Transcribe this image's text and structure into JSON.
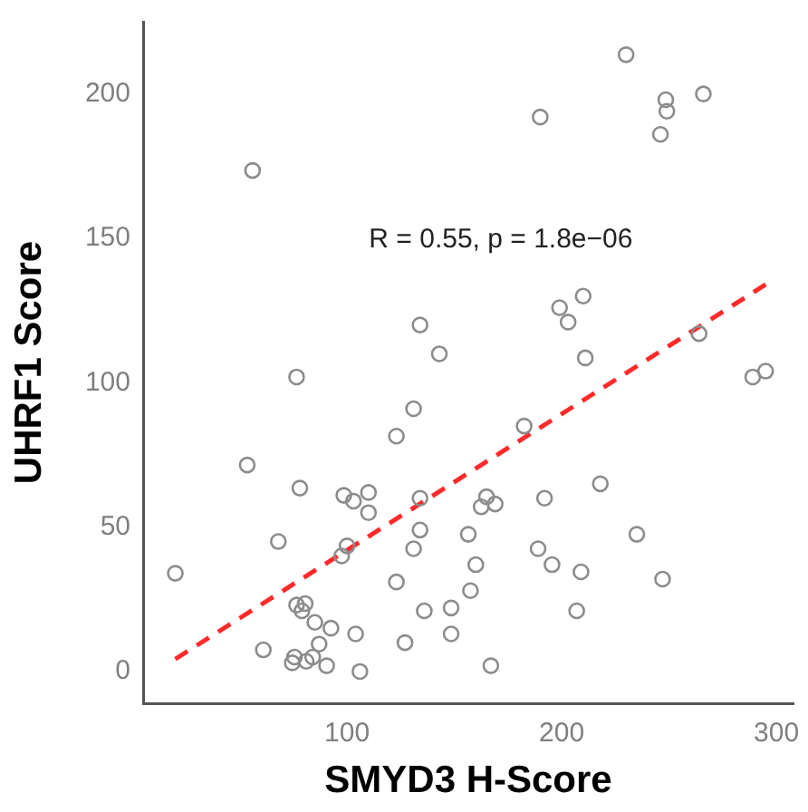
{
  "chart_data": {
    "type": "scatter",
    "xlabel": "SMYD3 H-Score",
    "ylabel": "UHRF1 Score",
    "annotations": [
      "R = 0.55, p = 1.8e−06"
    ],
    "xlim": [
      5,
      308
    ],
    "xticks": [
      100,
      200,
      300
    ],
    "ylim": [
      -11,
      225
    ],
    "yticks": [
      0,
      50,
      100,
      150,
      200
    ],
    "grid": false,
    "legend": false,
    "marker": "circle",
    "series": [
      {
        "color": "#8c8c8c",
        "x": [
          56,
          230,
          190,
          248.5,
          249,
          266,
          246,
          134,
          143,
          199,
          210,
          203,
          211,
          264,
          289,
          295,
          131,
          123,
          182.5,
          218,
          110,
          110,
          134,
          165,
          162.5,
          169,
          192,
          134,
          156.5,
          131,
          189,
          235,
          195.5,
          160,
          209,
          123,
          247,
          157.5,
          136,
          148.5,
          207,
          148.5,
          127,
          167,
          76.5,
          53.5,
          78,
          98.5,
          103,
          68,
          100,
          97.5,
          20,
          76.5,
          80.5,
          79,
          85,
          92.5,
          104,
          61,
          87,
          84,
          75.5,
          74.5,
          81,
          90.5,
          106
        ],
        "values": [
          173.5,
          213.6,
          192,
          198,
          194,
          200,
          186,
          120,
          110,
          126,
          130,
          121,
          108.6,
          117,
          102,
          104,
          91,
          81.5,
          85,
          65,
          62,
          55,
          60,
          60.5,
          57,
          58,
          60,
          49,
          47.5,
          42.5,
          42.5,
          47.5,
          37,
          37,
          34.5,
          31,
          32,
          28,
          21,
          22,
          21,
          13,
          10,
          2,
          102,
          71.5,
          63.5,
          61,
          59,
          45,
          43.5,
          40,
          34,
          23,
          23.5,
          21,
          17,
          15,
          13,
          7.5,
          9.5,
          5,
          5,
          3,
          3.5,
          2,
          0
        ]
      },
      {
        "type": "line",
        "color": "#ff2a2a",
        "line_style": "dashed",
        "marker": "none",
        "x": [
          20,
          295
        ],
        "values": [
          4.3,
          134
        ]
      }
    ]
  }
}
